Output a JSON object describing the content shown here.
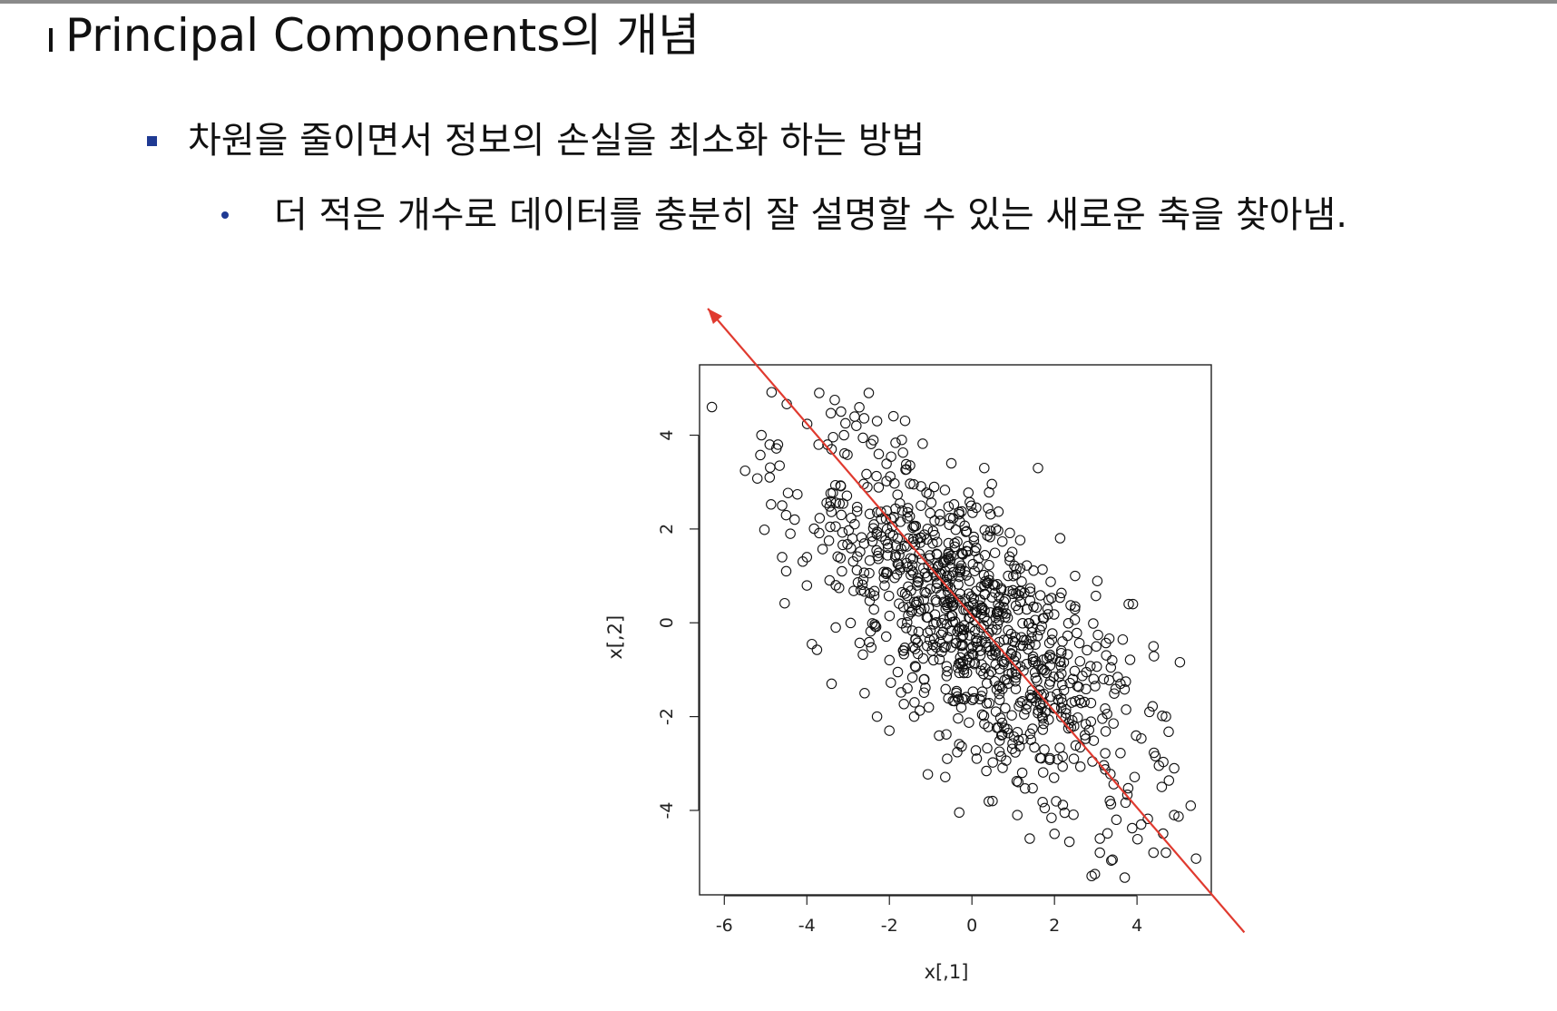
{
  "slide": {
    "title": "Principal Components의 개념",
    "bullet1": "차원을 줄이면서 정보의 손실을 최소화 하는 방법",
    "bullet2": "더 적은 개수로 데이터를 충분히 잘 설명할 수 있는 새로운 축을 찾아냄."
  },
  "colors": {
    "accent": "#1f3a93",
    "arrow": "#e03a2f",
    "points": "#111111"
  },
  "chart_data": {
    "type": "scatter",
    "title": "",
    "xlabel": "x[,1]",
    "ylabel": "x[,2]",
    "xlim": [
      -6.6,
      5.8
    ],
    "ylim": [
      -5.8,
      5.5
    ],
    "xticks": [
      "-6",
      "-4",
      "-2",
      "0",
      "2",
      "4"
    ],
    "yticks": [
      "-4",
      "-2",
      "0",
      "2",
      "4"
    ],
    "n_points": 1000,
    "correlation": -0.72,
    "x_sd": 2.0,
    "y_sd": 1.9,
    "grid": false,
    "principal_axis_arrow": {
      "from": [
        6.6,
        -6.6
      ],
      "to": [
        -6.4,
        6.7
      ]
    },
    "points": [
      [
        -6.3,
        4.6
      ],
      [
        -5.1,
        4.0
      ],
      [
        -4.9,
        3.8
      ],
      [
        -4.7,
        3.8
      ],
      [
        -4.9,
        3.1
      ],
      [
        -4.6,
        2.5
      ],
      [
        -4.4,
        1.9
      ],
      [
        -4.6,
        1.4
      ],
      [
        -4.5,
        1.1
      ],
      [
        -4.0,
        1.4
      ],
      [
        -3.7,
        4.9
      ],
      [
        -3.5,
        3.8
      ],
      [
        -3.4,
        3.7
      ],
      [
        -3.1,
        4.0
      ],
      [
        -2.8,
        4.2
      ],
      [
        -2.5,
        4.9
      ],
      [
        -2.3,
        4.3
      ],
      [
        -3.3,
        0.8
      ],
      [
        -3.3,
        -0.1
      ],
      [
        -3.4,
        -1.3
      ],
      [
        -2.6,
        -1.5
      ],
      [
        -2.3,
        -2.0
      ],
      [
        -2.0,
        -2.3
      ],
      [
        -1.7,
        3.9
      ],
      [
        -0.5,
        3.4
      ],
      [
        0.3,
        3.3
      ],
      [
        1.6,
        3.3
      ],
      [
        2.5,
        1.0
      ],
      [
        3.8,
        0.4
      ],
      [
        3.9,
        0.4
      ],
      [
        4.4,
        -0.5
      ],
      [
        3.4,
        -0.8
      ],
      [
        3.6,
        -1.3
      ],
      [
        4.3,
        -1.9
      ],
      [
        4.7,
        -2.0
      ],
      [
        4.6,
        -3.5
      ],
      [
        4.9,
        -3.1
      ],
      [
        5.3,
        -3.9
      ],
      [
        4.9,
        -4.1
      ],
      [
        4.1,
        -4.3
      ],
      [
        4.4,
        -4.9
      ],
      [
        4.7,
        -4.9
      ],
      [
        3.5,
        -4.2
      ],
      [
        3.1,
        -4.6
      ],
      [
        3.1,
        -4.9
      ],
      [
        2.9,
        -5.4
      ],
      [
        1.4,
        -4.6
      ],
      [
        -0.6,
        -2.9
      ],
      [
        -1.4,
        -2.0
      ],
      [
        2.0,
        -4.5
      ],
      [
        1.1,
        -4.1
      ],
      [
        0.5,
        -3.8
      ]
    ]
  }
}
